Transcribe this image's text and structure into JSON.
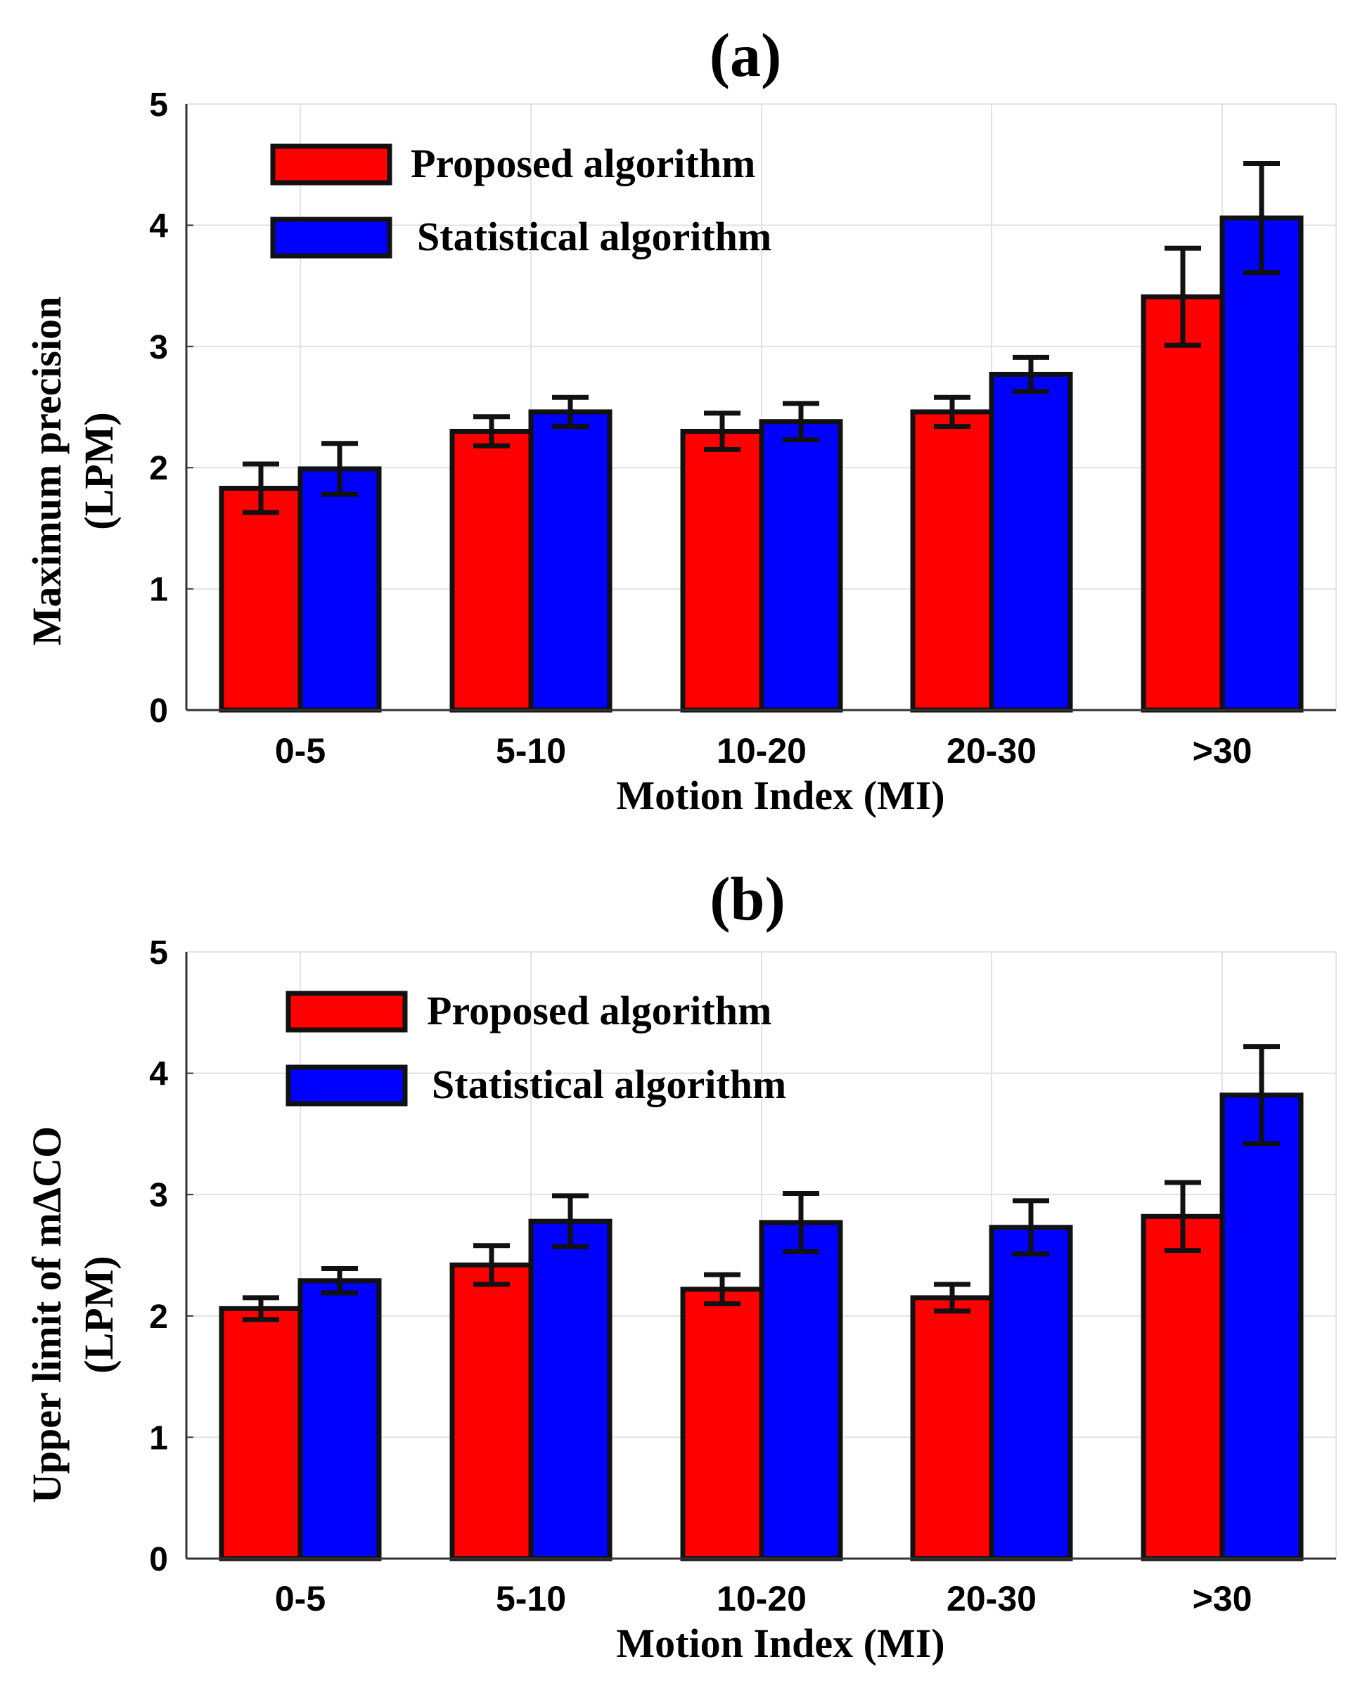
{
  "colors": {
    "proposed": "#ff0000",
    "statistical": "#0000ff",
    "outline": "#111111",
    "grid": "#e2e2e2",
    "axis": "#333333"
  },
  "chart_data": [
    {
      "type": "bar",
      "title": "(a)",
      "xlabel": "Motion Index (MI)",
      "ylabel_lines": [
        "Maximum precision",
        "(LPM)"
      ],
      "ylim": [
        0,
        5
      ],
      "yticks": [
        "0",
        "1",
        "2",
        "3",
        "4",
        "5"
      ],
      "grid": true,
      "legend_position": "top-left",
      "categories": [
        "0-5",
        "5-10",
        "10-20",
        "20-30",
        ">30"
      ],
      "series": [
        {
          "name": "Proposed algorithm",
          "color": "#ff0000",
          "values": [
            1.83,
            2.3,
            2.3,
            2.46,
            3.41
          ],
          "errors": [
            0.2,
            0.12,
            0.15,
            0.12,
            0.4
          ]
        },
        {
          "name": "Statistical algorithm",
          "color": "#0000ff",
          "values": [
            1.99,
            2.46,
            2.38,
            2.77,
            4.06
          ],
          "errors": [
            0.21,
            0.12,
            0.15,
            0.14,
            0.45
          ]
        }
      ]
    },
    {
      "type": "bar",
      "title": "(b)",
      "xlabel": "Motion Index (MI)",
      "ylabel_lines": [
        "Upper limit of mΔCO",
        "(LPM)"
      ],
      "ylim": [
        0,
        5
      ],
      "yticks": [
        "0",
        "1",
        "2",
        "3",
        "4",
        "5"
      ],
      "grid": true,
      "legend_position": "top-left",
      "categories": [
        "0-5",
        "5-10",
        "10-20",
        "20-30",
        ">30"
      ],
      "series": [
        {
          "name": "Proposed algorithm",
          "color": "#ff0000",
          "values": [
            2.06,
            2.42,
            2.22,
            2.15,
            2.82
          ],
          "errors": [
            0.09,
            0.16,
            0.12,
            0.11,
            0.28
          ]
        },
        {
          "name": "Statistical algorithm",
          "color": "#0000ff",
          "values": [
            2.29,
            2.78,
            2.77,
            2.73,
            3.82
          ],
          "errors": [
            0.1,
            0.21,
            0.24,
            0.22,
            0.4
          ]
        }
      ]
    }
  ]
}
